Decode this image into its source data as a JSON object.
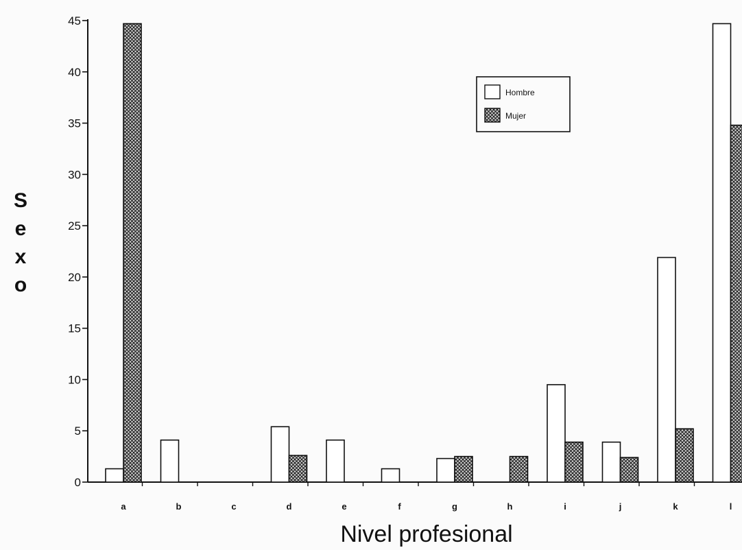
{
  "chart_data": {
    "type": "bar",
    "title": "",
    "xlabel": "Nivel profesional",
    "ylabel": "Sexo",
    "ylim": [
      0,
      45
    ],
    "yticks": [
      0,
      5,
      10,
      15,
      20,
      25,
      30,
      35,
      40,
      45
    ],
    "categories": [
      "a",
      "b",
      "c",
      "d",
      "e",
      "f",
      "g",
      "h",
      "i",
      "j",
      "k",
      "l"
    ],
    "series": [
      {
        "name": "Hombre",
        "values": [
          1.3,
          4.1,
          0,
          5.4,
          4.1,
          1.3,
          2.3,
          0,
          9.5,
          3.9,
          21.9,
          44.7
        ],
        "fill": "#ffffff"
      },
      {
        "name": "Mujer",
        "values": [
          44.7,
          0,
          0,
          2.6,
          0,
          0,
          2.5,
          2.5,
          3.9,
          2.4,
          5.2,
          34.8
        ],
        "fill": "crosshatch"
      }
    ],
    "legend_position": "top-right",
    "grid": false
  }
}
